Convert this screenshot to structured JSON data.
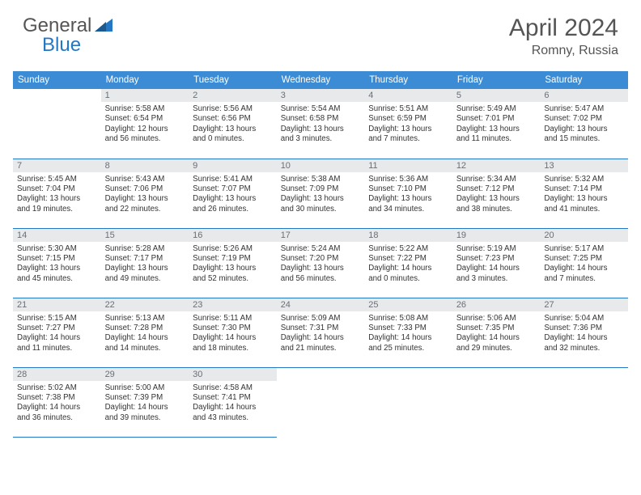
{
  "brand": {
    "part1": "General",
    "part2": "Blue"
  },
  "title": "April 2024",
  "location": "Romny, Russia",
  "colors": {
    "header_bg": "#3b8cd4",
    "header_text": "#ffffff",
    "daynum_bg": "#e7e9eb",
    "daynum_text": "#6a6f75",
    "cell_border": "#2477c4",
    "body_text": "#333333",
    "title_text": "#555555"
  },
  "weekdays": [
    "Sunday",
    "Monday",
    "Tuesday",
    "Wednesday",
    "Thursday",
    "Friday",
    "Saturday"
  ],
  "grid": [
    [
      null,
      {
        "n": "1",
        "sr": "Sunrise: 5:58 AM",
        "ss": "Sunset: 6:54 PM",
        "d1": "Daylight: 12 hours",
        "d2": "and 56 minutes."
      },
      {
        "n": "2",
        "sr": "Sunrise: 5:56 AM",
        "ss": "Sunset: 6:56 PM",
        "d1": "Daylight: 13 hours",
        "d2": "and 0 minutes."
      },
      {
        "n": "3",
        "sr": "Sunrise: 5:54 AM",
        "ss": "Sunset: 6:58 PM",
        "d1": "Daylight: 13 hours",
        "d2": "and 3 minutes."
      },
      {
        "n": "4",
        "sr": "Sunrise: 5:51 AM",
        "ss": "Sunset: 6:59 PM",
        "d1": "Daylight: 13 hours",
        "d2": "and 7 minutes."
      },
      {
        "n": "5",
        "sr": "Sunrise: 5:49 AM",
        "ss": "Sunset: 7:01 PM",
        "d1": "Daylight: 13 hours",
        "d2": "and 11 minutes."
      },
      {
        "n": "6",
        "sr": "Sunrise: 5:47 AM",
        "ss": "Sunset: 7:02 PM",
        "d1": "Daylight: 13 hours",
        "d2": "and 15 minutes."
      }
    ],
    [
      {
        "n": "7",
        "sr": "Sunrise: 5:45 AM",
        "ss": "Sunset: 7:04 PM",
        "d1": "Daylight: 13 hours",
        "d2": "and 19 minutes."
      },
      {
        "n": "8",
        "sr": "Sunrise: 5:43 AM",
        "ss": "Sunset: 7:06 PM",
        "d1": "Daylight: 13 hours",
        "d2": "and 22 minutes."
      },
      {
        "n": "9",
        "sr": "Sunrise: 5:41 AM",
        "ss": "Sunset: 7:07 PM",
        "d1": "Daylight: 13 hours",
        "d2": "and 26 minutes."
      },
      {
        "n": "10",
        "sr": "Sunrise: 5:38 AM",
        "ss": "Sunset: 7:09 PM",
        "d1": "Daylight: 13 hours",
        "d2": "and 30 minutes."
      },
      {
        "n": "11",
        "sr": "Sunrise: 5:36 AM",
        "ss": "Sunset: 7:10 PM",
        "d1": "Daylight: 13 hours",
        "d2": "and 34 minutes."
      },
      {
        "n": "12",
        "sr": "Sunrise: 5:34 AM",
        "ss": "Sunset: 7:12 PM",
        "d1": "Daylight: 13 hours",
        "d2": "and 38 minutes."
      },
      {
        "n": "13",
        "sr": "Sunrise: 5:32 AM",
        "ss": "Sunset: 7:14 PM",
        "d1": "Daylight: 13 hours",
        "d2": "and 41 minutes."
      }
    ],
    [
      {
        "n": "14",
        "sr": "Sunrise: 5:30 AM",
        "ss": "Sunset: 7:15 PM",
        "d1": "Daylight: 13 hours",
        "d2": "and 45 minutes."
      },
      {
        "n": "15",
        "sr": "Sunrise: 5:28 AM",
        "ss": "Sunset: 7:17 PM",
        "d1": "Daylight: 13 hours",
        "d2": "and 49 minutes."
      },
      {
        "n": "16",
        "sr": "Sunrise: 5:26 AM",
        "ss": "Sunset: 7:19 PM",
        "d1": "Daylight: 13 hours",
        "d2": "and 52 minutes."
      },
      {
        "n": "17",
        "sr": "Sunrise: 5:24 AM",
        "ss": "Sunset: 7:20 PM",
        "d1": "Daylight: 13 hours",
        "d2": "and 56 minutes."
      },
      {
        "n": "18",
        "sr": "Sunrise: 5:22 AM",
        "ss": "Sunset: 7:22 PM",
        "d1": "Daylight: 14 hours",
        "d2": "and 0 minutes."
      },
      {
        "n": "19",
        "sr": "Sunrise: 5:19 AM",
        "ss": "Sunset: 7:23 PM",
        "d1": "Daylight: 14 hours",
        "d2": "and 3 minutes."
      },
      {
        "n": "20",
        "sr": "Sunrise: 5:17 AM",
        "ss": "Sunset: 7:25 PM",
        "d1": "Daylight: 14 hours",
        "d2": "and 7 minutes."
      }
    ],
    [
      {
        "n": "21",
        "sr": "Sunrise: 5:15 AM",
        "ss": "Sunset: 7:27 PM",
        "d1": "Daylight: 14 hours",
        "d2": "and 11 minutes."
      },
      {
        "n": "22",
        "sr": "Sunrise: 5:13 AM",
        "ss": "Sunset: 7:28 PM",
        "d1": "Daylight: 14 hours",
        "d2": "and 14 minutes."
      },
      {
        "n": "23",
        "sr": "Sunrise: 5:11 AM",
        "ss": "Sunset: 7:30 PM",
        "d1": "Daylight: 14 hours",
        "d2": "and 18 minutes."
      },
      {
        "n": "24",
        "sr": "Sunrise: 5:09 AM",
        "ss": "Sunset: 7:31 PM",
        "d1": "Daylight: 14 hours",
        "d2": "and 21 minutes."
      },
      {
        "n": "25",
        "sr": "Sunrise: 5:08 AM",
        "ss": "Sunset: 7:33 PM",
        "d1": "Daylight: 14 hours",
        "d2": "and 25 minutes."
      },
      {
        "n": "26",
        "sr": "Sunrise: 5:06 AM",
        "ss": "Sunset: 7:35 PM",
        "d1": "Daylight: 14 hours",
        "d2": "and 29 minutes."
      },
      {
        "n": "27",
        "sr": "Sunrise: 5:04 AM",
        "ss": "Sunset: 7:36 PM",
        "d1": "Daylight: 14 hours",
        "d2": "and 32 minutes."
      }
    ],
    [
      {
        "n": "28",
        "sr": "Sunrise: 5:02 AM",
        "ss": "Sunset: 7:38 PM",
        "d1": "Daylight: 14 hours",
        "d2": "and 36 minutes."
      },
      {
        "n": "29",
        "sr": "Sunrise: 5:00 AM",
        "ss": "Sunset: 7:39 PM",
        "d1": "Daylight: 14 hours",
        "d2": "and 39 minutes."
      },
      {
        "n": "30",
        "sr": "Sunrise: 4:58 AM",
        "ss": "Sunset: 7:41 PM",
        "d1": "Daylight: 14 hours",
        "d2": "and 43 minutes."
      },
      null,
      null,
      null,
      null
    ]
  ]
}
